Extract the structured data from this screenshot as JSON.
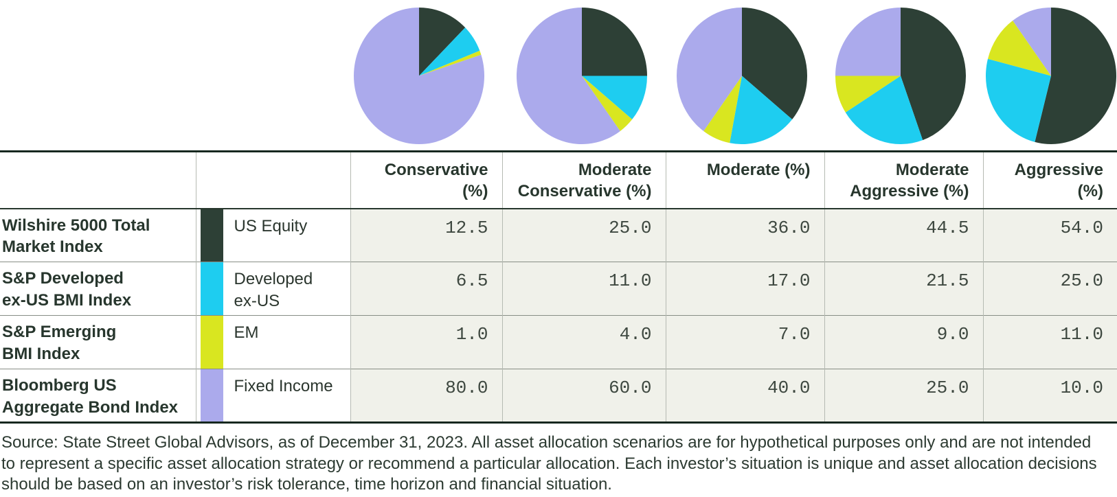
{
  "colors": {
    "us_equity": "#2d4036",
    "developed_ex_us": "#1ecdf0",
    "em": "#d9e620",
    "fixed_income": "#abaaec",
    "header_text": "#27362d",
    "value_text": "#3e4840",
    "value_cell_bg": "#f0f1ea",
    "thick_border": "#16281f",
    "row_divider": "#878d85",
    "col_divider": "#b5bab2"
  },
  "chart_data": {
    "type": "pie",
    "slice_labels": [
      "US Equity",
      "Developed ex-US",
      "EM",
      "Fixed Income"
    ],
    "slice_colors": [
      "#2d4036",
      "#1ecdf0",
      "#d9e620",
      "#abaaec"
    ],
    "start_angle": "12 o'clock, clockwise",
    "pies": [
      {
        "name": "Conservative",
        "values": [
          12.5,
          6.5,
          1.0,
          80.0
        ]
      },
      {
        "name": "Moderate Conservative",
        "values": [
          25.0,
          11.0,
          4.0,
          60.0
        ]
      },
      {
        "name": "Moderate",
        "values": [
          36.0,
          17.0,
          7.0,
          40.0
        ]
      },
      {
        "name": "Moderate Aggressive",
        "values": [
          44.5,
          21.5,
          9.0,
          25.0
        ]
      },
      {
        "name": "Aggressive",
        "values": [
          54.0,
          25.0,
          11.0,
          10.0
        ]
      }
    ]
  },
  "table": {
    "col_headers": [
      "Conservative\n(%)",
      "Moderate\nConservative (%)",
      "Moderate (%)",
      "Moderate\nAggressive (%)",
      "Aggressive (%)"
    ],
    "rows": [
      {
        "index_name": "Wilshire 5000 Total\nMarket Index",
        "asset": "US Equity",
        "swatch": "#2d4036",
        "values": [
          "12.5",
          "25.0",
          "36.0",
          "44.5",
          "54.0"
        ]
      },
      {
        "index_name": "S&P Developed\nex-US BMI Index",
        "asset": "Developed\nex-US",
        "swatch": "#1ecdf0",
        "values": [
          "6.5",
          "11.0",
          "17.0",
          "21.5",
          "25.0"
        ]
      },
      {
        "index_name": "S&P Emerging\nBMI Index",
        "asset": "EM",
        "swatch": "#d9e620",
        "values": [
          "1.0",
          "4.0",
          "7.0",
          "9.0",
          "11.0"
        ]
      },
      {
        "index_name": "Bloomberg US\nAggregate Bond Index",
        "asset": "Fixed Income",
        "swatch": "#abaaec",
        "values": [
          "80.0",
          "60.0",
          "40.0",
          "25.0",
          "10.0"
        ]
      }
    ]
  },
  "footnote": "Source: State Street Global Advisors, as of December 31, 2023. All asset allocation scenarios are for hypothetical purposes only and are not intended to represent a specific asset allocation strategy or recommend a particular allocation. Each investor’s situation is unique and asset allocation decisions should be based on an investor’s risk tolerance, time horizon and financial situation."
}
